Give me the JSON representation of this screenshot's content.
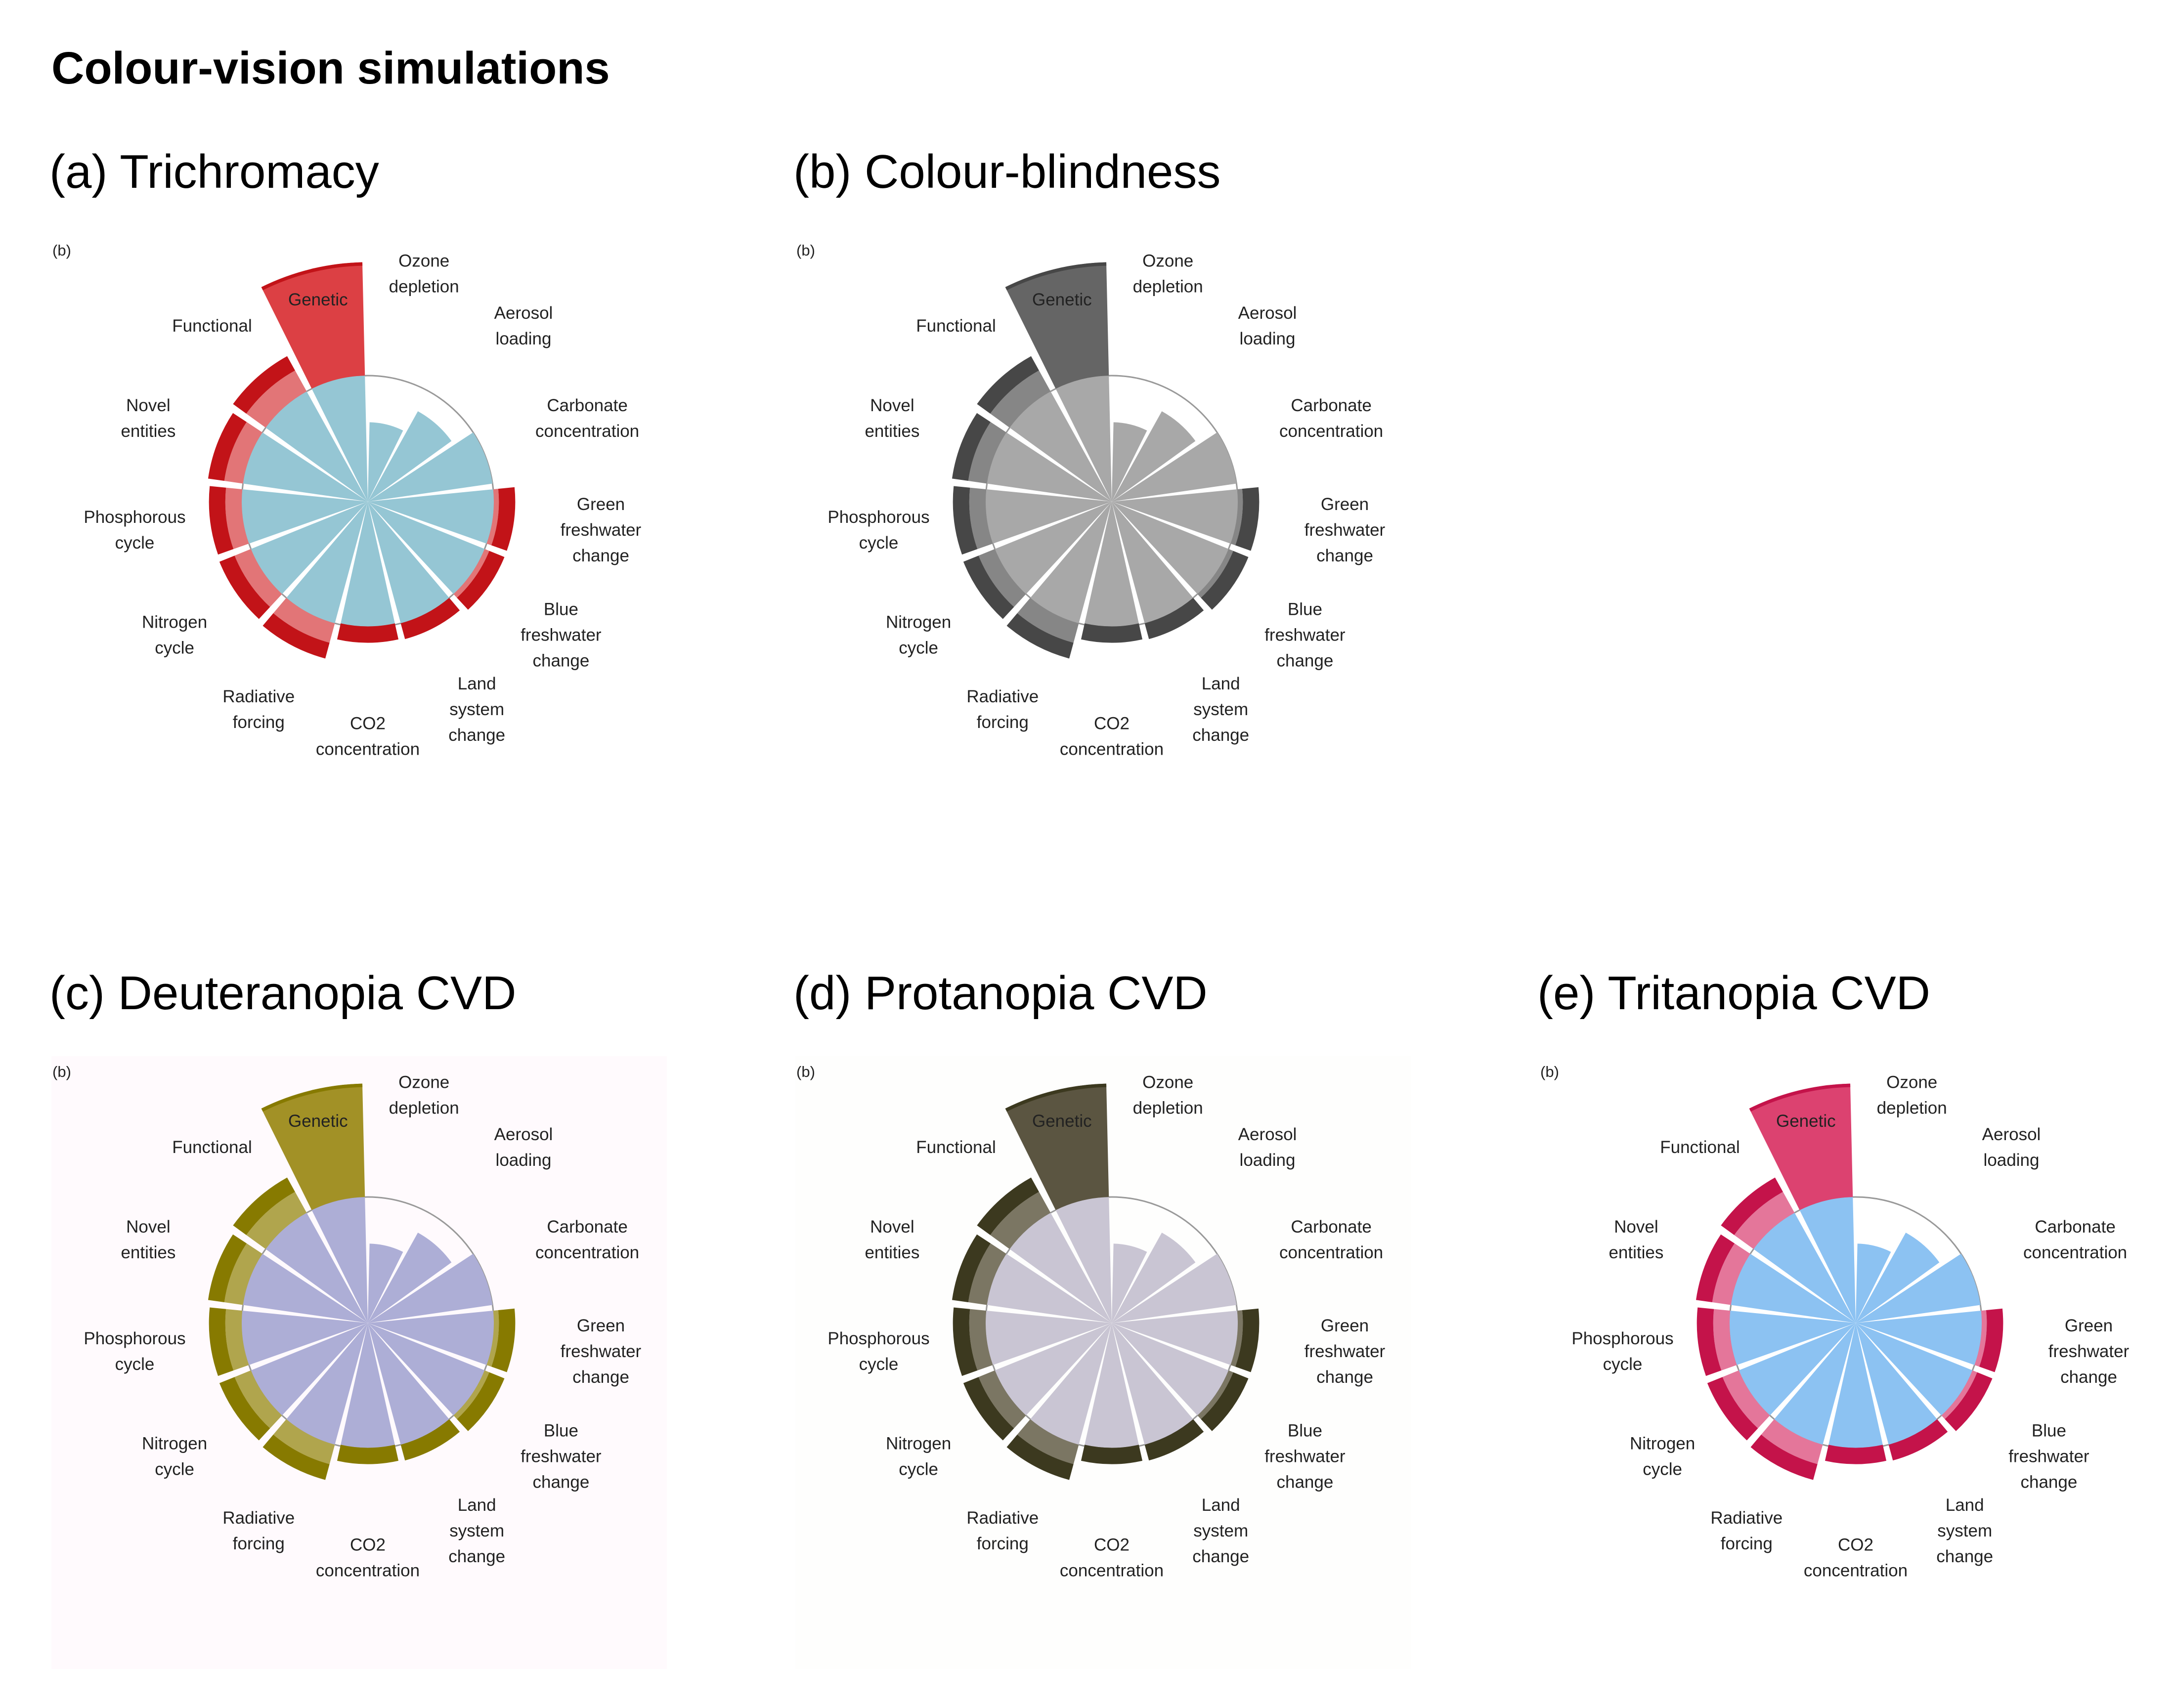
{
  "page_title": "Colour-vision simulations",
  "panels": [
    {
      "heading": "(a) Trichromacy",
      "subplot_tag": "(b)",
      "background": "#ffffff",
      "inner_color": "#95c6d4",
      "outer_base": "#dc4044",
      "outer_dark": "#c21318",
      "outer_light": "#e27577",
      "ring_color": "#999999"
    },
    {
      "heading": "(b) Colour-blindness",
      "subplot_tag": "(b)",
      "background": "#ffffff",
      "inner_color": "#a8a8a8",
      "outer_base": "#656565",
      "outer_dark": "#474747",
      "outer_light": "#868686",
      "ring_color": "#999999"
    },
    {
      "heading": "(c) Deuteranopia CVD",
      "subplot_tag": "(b)",
      "background": "#fffafd",
      "inner_color": "#adaed6",
      "outer_base": "#a29126",
      "outer_dark": "#877a00",
      "outer_light": "#b0a54d",
      "ring_color": "#999999"
    },
    {
      "heading": "(d) Protanopia CVD",
      "subplot_tag": "(b)",
      "background": "#fefefd",
      "inner_color": "#c9c5d3",
      "outer_base": "#5b5541",
      "outer_dark": "#3c391f",
      "outer_light": "#7b7663",
      "ring_color": "#999999"
    },
    {
      "heading": "(e) Tritanopia CVD",
      "subplot_tag": "(b)",
      "background": "#ffffff",
      "inner_color": "#8cc2f2",
      "outer_base": "#dc4270",
      "outer_dark": "#c4134a",
      "outer_light": "#e4769a",
      "ring_color": "#999999"
    }
  ],
  "chart_data": {
    "type": "polar-bar",
    "note": "values are radial extents relative to the safe-operating-space circle (1.0); identical data in all five panels",
    "categories": [
      [
        "Ozone",
        "depletion"
      ],
      [
        "Aerosol",
        "loading"
      ],
      [
        "Carbonate",
        "concentration"
      ],
      [
        "Green",
        "freshwater",
        "change"
      ],
      [
        "Blue",
        "freshwater",
        "change"
      ],
      [
        "Land",
        "system",
        "change"
      ],
      [
        "CO2",
        "concentration"
      ],
      [
        "Radiative",
        "forcing"
      ],
      [
        "Nitrogen",
        "cycle"
      ],
      [
        "Phosphorous",
        "cycle"
      ],
      [
        "Novel",
        "entities"
      ],
      [
        "Functional"
      ],
      [
        "Genetic"
      ]
    ],
    "values": [
      0.63,
      0.82,
      1.0,
      1.17,
      1.17,
      1.13,
      1.12,
      1.29,
      1.27,
      1.26,
      1.28,
      1.32,
      1.9
    ],
    "boundary": 1.0
  }
}
